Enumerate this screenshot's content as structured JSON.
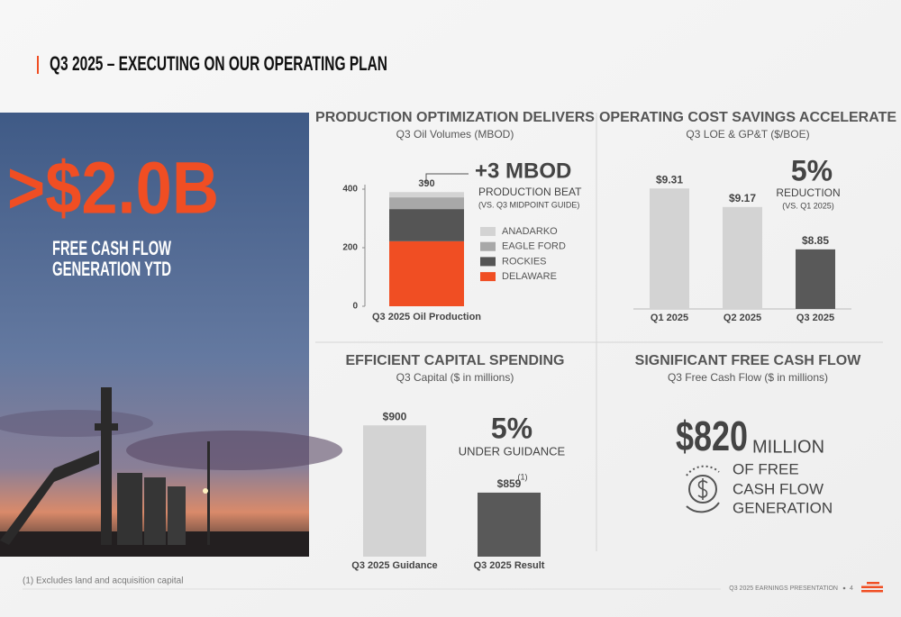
{
  "header": {
    "title": "Q3 2025 – EXECUTING ON OUR OPERATING PLAN"
  },
  "hero": {
    "headline": ">$2.0B",
    "lines": [
      "FREE CASH FLOW",
      "GENERATION YTD"
    ]
  },
  "chart_data": [
    {
      "type": "stacked_bar",
      "title": "PRODUCTION OPTIMIZATION DELIVERS",
      "subtitle": "Q3 Oil Volumes (MBOD)",
      "categories": [
        "Q3 2025 Oil Production"
      ],
      "series": [
        {
          "name": "DELAWARE",
          "color": "#f04e23",
          "values": [
            222
          ]
        },
        {
          "name": "ROCKIES",
          "color": "#555555",
          "values": [
            110
          ]
        },
        {
          "name": "EAGLE FORD",
          "color": "#a8a8a8",
          "values": [
            40
          ]
        },
        {
          "name": "ANADARKO",
          "color": "#d3d3d3",
          "values": [
            18
          ]
        }
      ],
      "total": 390,
      "ylim": [
        0,
        400
      ],
      "yticks": [
        0,
        200,
        400
      ],
      "annotation": {
        "headline": "+3 MBOD",
        "text": "PRODUCTION BEAT",
        "note": "(VS. Q3 MIDPOINT GUIDE)"
      }
    },
    {
      "type": "bar",
      "title": "OPERATING COST SAVINGS ACCELERATE",
      "subtitle": "Q3 LOE & GP&T ($/BOE)",
      "categories": [
        "Q1 2025",
        "Q2 2025",
        "Q3 2025"
      ],
      "values": [
        9.31,
        9.17,
        8.85
      ],
      "value_labels": [
        "$9.31",
        "$9.17",
        "$8.85"
      ],
      "colors": [
        "#d3d3d3",
        "#d3d3d3",
        "#595959"
      ],
      "ylim": [
        8.4,
        9.4
      ],
      "annotation": {
        "headline": "5%",
        "text": "REDUCTION",
        "note": "(VS. Q1 2025)"
      }
    },
    {
      "type": "bar",
      "title": "EFFICIENT CAPITAL SPENDING",
      "subtitle": "Q3 Capital ($ in millions)",
      "categories": [
        "Q3 2025 Guidance",
        "Q3 2025 Result"
      ],
      "values": [
        900,
        859
      ],
      "value_labels": [
        "$900",
        "$859"
      ],
      "colors": [
        "#d3d3d3",
        "#595959"
      ],
      "result_note": "(1)",
      "ylim": [
        820,
        910
      ],
      "annotation": {
        "headline": "5%",
        "text": "UNDER GUIDANCE"
      }
    }
  ],
  "fcf": {
    "title": "SIGNIFICANT FREE CASH FLOW",
    "subtitle": "Q3 Free Cash Flow ($ in millions)",
    "amount": "$820",
    "unit": "MILLION",
    "lines": [
      "OF FREE",
      "CASH FLOW",
      "GENERATION"
    ]
  },
  "footer": {
    "footnote": "(1) Excludes land and acquisition capital",
    "deck": "Q3 2025 EARNINGS PRESENTATION",
    "page": "4"
  }
}
